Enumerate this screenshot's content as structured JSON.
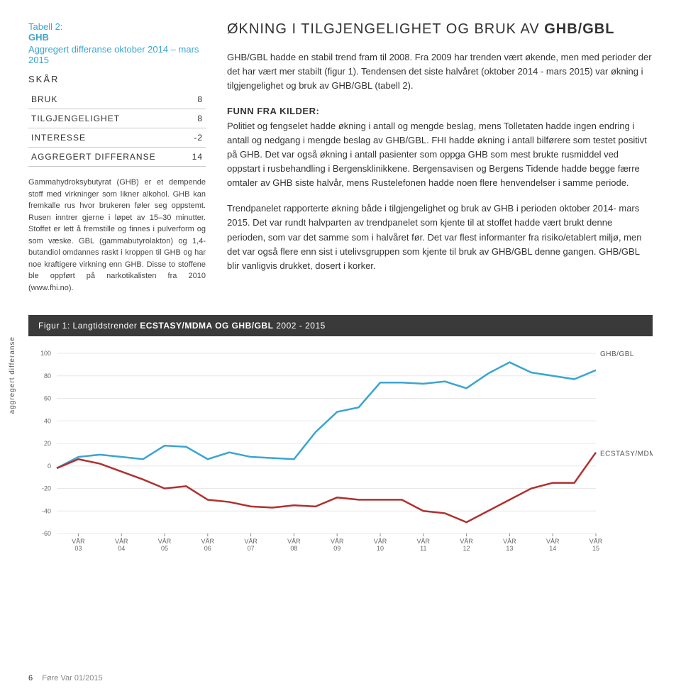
{
  "table": {
    "label_prefix": "Tabell 2:",
    "label_strong": "GHB",
    "subtitle": "Aggregert differanse oktober 2014 – mars 2015",
    "skar": "SKÅR",
    "rows": [
      {
        "label": "BRUK",
        "val": "8"
      },
      {
        "label": "TILGJENGELIGHET",
        "val": "8"
      },
      {
        "label": "INTERESSE",
        "val": "-2"
      },
      {
        "label": "AGGREGERT DIFFERANSE",
        "val": "14"
      }
    ]
  },
  "left_body": "Gammahydroksybutyrat (GHB) er et dempende stoff med virkninger som likner alkohol. GHB kan fremkalle rus hvor brukeren føler seg oppstemt. Rusen inntrer gjerne i løpet av 15–30 minutter. Stoffet er lett å fremstille og finnes i pulverform og som væske. GBL (gammabutyrolakton) og 1,4-butandiol omdannes raskt i kroppen til GHB og har noe kraftigere virkning enn GHB. Disse to stoffene ble oppført på narkotikalisten fra 2010 (www.fhi.no).",
  "headline_pre": "ØKNING I TILGJENGELIGHET OG BRUK AV ",
  "headline_strong": "GHB/GBL",
  "para1": "GHB/GBL hadde en stabil trend fram til 2008. Fra 2009 har trenden vært økende, men med perioder der det har vært mer stabilt (figur 1). Tendensen det siste halvåret (oktober 2014 - mars 2015) var økning i tilgjengelighet og bruk av GHB/GBL (tabell 2).",
  "funn_label": "FUNN FRA KILDER:",
  "para2": "Politiet og fengselet hadde økning i antall og mengde beslag, mens Tolletaten hadde ingen endring i antall og nedgang i mengde beslag av GHB/GBL. FHI hadde økning i antall bilførere som testet positivt på GHB. Det var også økning i antall pasienter som oppga GHB som mest brukte rusmiddel ved oppstart i rusbehandling i Bergensklinikkene. Bergensavisen og Bergens Tidende hadde begge færre omtaler av GHB siste halvår, mens Rustelefonen hadde noen flere henvendelser i samme periode.",
  "para3": "Trendpanelet rapporterte økning både i tilgjengelighet og bruk av GHB i perioden oktober 2014- mars 2015. Det var rundt halvparten av trendpanelet som kjente til at stoffet hadde vært brukt denne perioden, som var det samme som i halvåret før. Det var flest informanter fra risiko/etablert miljø, men det var også flere enn sist i utelivsgruppen som kjente til bruk av GHB/GBL denne gangen. GHB/GBL blir vanligvis drukket, dosert i korker.",
  "chart": {
    "title_pre": "Figur 1: Langtidstrender ",
    "title_strong": "ECSTASY/MDMA OG GHB/GBL",
    "title_post": " 2002 - 2015",
    "ylabel": "aggregert differanse",
    "ylim": [
      -60,
      100
    ],
    "ytick": [
      -60,
      -40,
      -20,
      0,
      20,
      40,
      60,
      80,
      100
    ],
    "xticks": [
      "VÅR 03",
      "VÅR 04",
      "VÅR 05",
      "VÅR 06",
      "VÅR 07",
      "VÅR 08",
      "VÅR 09",
      "VÅR 10",
      "VÅR 11",
      "VÅR 12",
      "VÅR 13",
      "VÅR 14",
      "VÅR 15"
    ],
    "n_points": 26,
    "series": [
      {
        "name": "GHB/GBL",
        "color": "#3ba5cf",
        "width": 2.5,
        "values": [
          -2,
          8,
          10,
          8,
          6,
          18,
          17,
          6,
          12,
          8,
          7,
          6,
          30,
          48,
          52,
          74,
          74,
          73,
          75,
          69,
          82,
          92,
          83,
          80,
          77,
          85
        ]
      },
      {
        "name": "ECSTASY/MDMA",
        "color": "#b03030",
        "width": 2.5,
        "values": [
          -2,
          6,
          2,
          -5,
          -12,
          -20,
          -18,
          -30,
          -32,
          -36,
          -37,
          -35,
          -36,
          -28,
          -30,
          -30,
          -30,
          -40,
          -42,
          -50,
          -40,
          -30,
          -20,
          -15,
          -15,
          12
        ]
      }
    ],
    "label_ghb": "GHB/GBL",
    "label_ecstasy": "ECSTASY/MDMA",
    "bg": "#ffffff",
    "grid_color": "#e8e8e8"
  },
  "footer": {
    "page": "6",
    "text": "Føre Var 01/2015"
  }
}
